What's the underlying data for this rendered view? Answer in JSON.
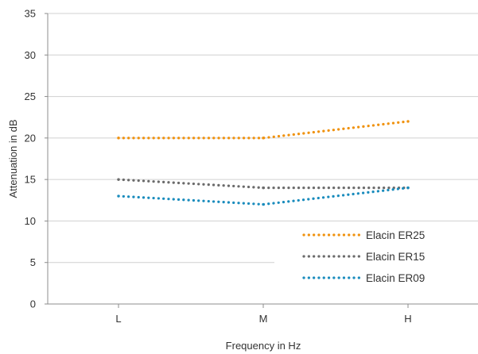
{
  "chart_data": {
    "type": "line",
    "title": "",
    "xlabel": "Frequency in Hz",
    "ylabel": "Attenuation in dB",
    "categories": [
      "L",
      "M",
      "H"
    ],
    "ylim": [
      0,
      35
    ],
    "yticks": [
      0,
      5,
      10,
      15,
      20,
      25,
      30,
      35
    ],
    "grid": true,
    "legend_position": "bottom-right",
    "line_style": "dotted",
    "series": [
      {
        "name": "Elacin ER25",
        "values": [
          20,
          20,
          22
        ],
        "color": "#F0920E"
      },
      {
        "name": "Elacin ER15",
        "values": [
          15,
          14,
          14
        ],
        "color": "#6B6B6B"
      },
      {
        "name": "Elacin ER09",
        "values": [
          13,
          12,
          14
        ],
        "color": "#1A8CBD"
      }
    ]
  }
}
